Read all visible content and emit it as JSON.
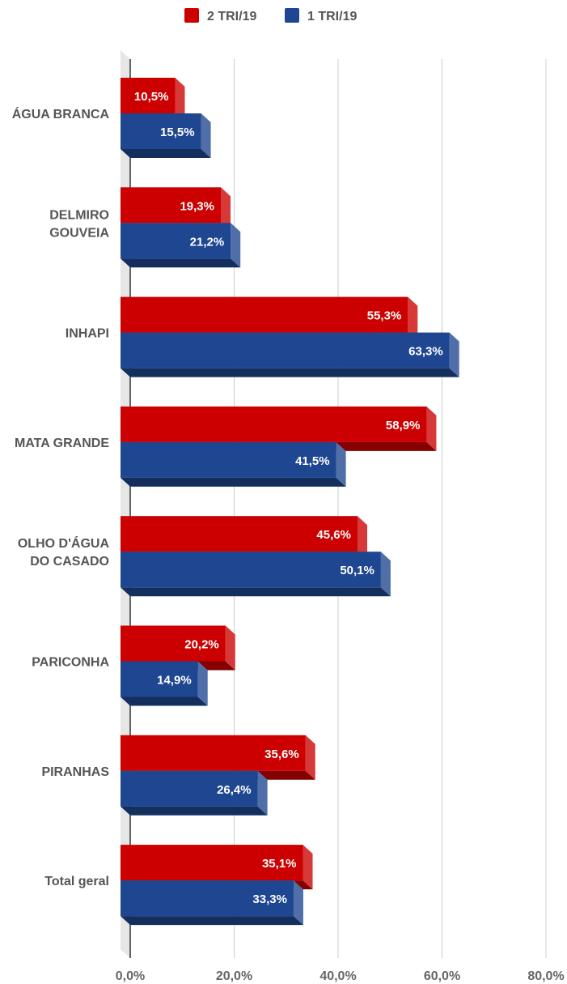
{
  "chart_data": {
    "type": "bar",
    "orientation": "horizontal",
    "style": "3d",
    "categories": [
      [
        "ÁGUA BRANCA"
      ],
      [
        "DELMIRO",
        "GOUVEIA"
      ],
      [
        "INHAPI"
      ],
      [
        "MATA GRANDE"
      ],
      [
        "OLHO D'ÁGUA",
        "DO CASADO"
      ],
      [
        "PARICONHA"
      ],
      [
        "PIRANHAS"
      ],
      [
        "Total geral"
      ]
    ],
    "series": [
      {
        "name": "2 TRI/19",
        "color": "#cc0000",
        "values": [
          10.5,
          19.3,
          55.3,
          58.9,
          45.6,
          20.2,
          35.6,
          35.1
        ],
        "labels": [
          "10,5%",
          "19,3%",
          "55,3%",
          "58,9%",
          "45,6%",
          "20,2%",
          "35,6%",
          "35,1%"
        ]
      },
      {
        "name": "1 TRI/19",
        "color": "#1f4690",
        "values": [
          15.5,
          21.2,
          63.3,
          41.5,
          50.1,
          14.9,
          26.4,
          33.3
        ],
        "labels": [
          "15,5%",
          "21,2%",
          "63,3%",
          "41,5%",
          "50,1%",
          "14,9%",
          "26,4%",
          "33,3%"
        ]
      }
    ],
    "xlim": [
      0,
      80
    ],
    "x_ticks": [
      0,
      20,
      40,
      60,
      80
    ],
    "x_tick_labels": [
      "0,0%",
      "20,0%",
      "40,0%",
      "60,0%",
      "80,0%"
    ],
    "grid": true,
    "legend_position": "top-center"
  }
}
